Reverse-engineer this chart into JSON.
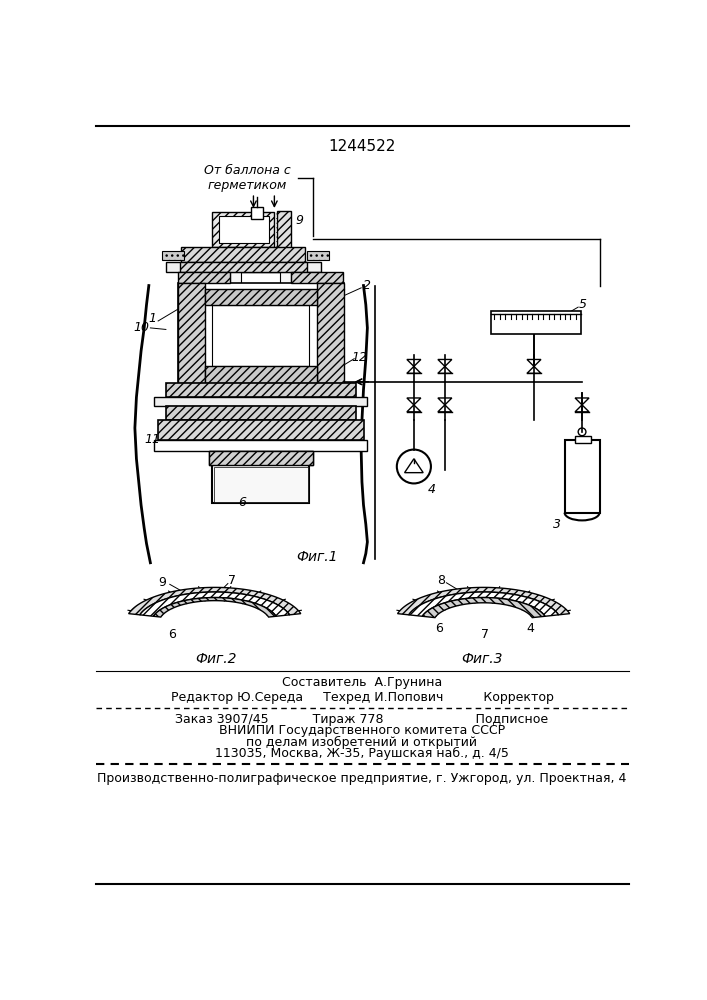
{
  "patent_number": "1244522",
  "title_label": "От баллона с\nгерметиком",
  "fig1_label": "Фиг.1",
  "fig2_label": "Фиг.2",
  "fig3_label": "Фиг.3",
  "composer_line": "Составитель  А.Грунина",
  "editor_line": "Редактор Ю.Середа     Техред И.Попович          Корректор",
  "order_line": "Заказ 3907/45           Тираж 778                       Подписное",
  "vniiipi_line1": "ВНИИПИ Государственного комитета СССР",
  "vniiipi_line2": "по делам изобретений и открытий",
  "vniiipi_line3": "113035, Москва, Ж-35, Раушская наб., д. 4/5",
  "production_line": "Производственно-полиграфическое предприятие, г. Ужгород, ул. Проектная, 4",
  "bg_color": "#ffffff",
  "lc": "#000000"
}
